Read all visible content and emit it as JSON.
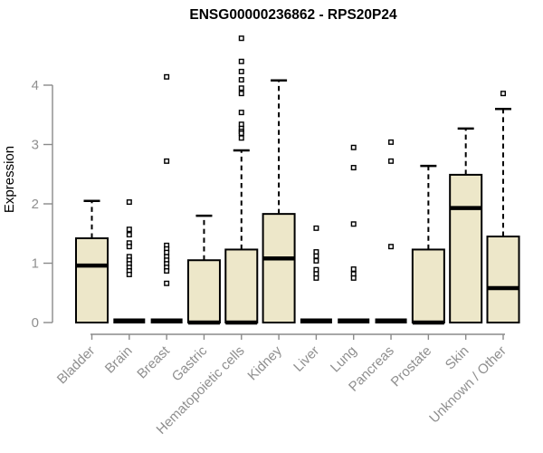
{
  "title": "ENSG00000236862 - RPS20P24",
  "chart_data": {
    "type": "boxplot",
    "title": "ENSG00000236862 - RPS20P24",
    "xlabel": "",
    "ylabel": "Expression",
    "ylim": [
      0,
      4.9
    ],
    "yticks": [
      0,
      1,
      2,
      3,
      4
    ],
    "grid": false,
    "legend": false,
    "categories": [
      "Bladder",
      "Brain",
      "Breast",
      "Gastric",
      "Hematopoietic cells",
      "Kidney",
      "Liver",
      "Lung",
      "Pancreas",
      "Prostate",
      "Skin",
      "Unknown / Other"
    ],
    "boxes": [
      {
        "name": "Bladder",
        "low": 0,
        "q1": 0,
        "median": 0.96,
        "q3": 1.42,
        "high": 2.05,
        "outliers": []
      },
      {
        "name": "Brain",
        "low": 0,
        "q1": 0,
        "median": 0,
        "q3": 0,
        "high": 0,
        "outliers": [
          2.03,
          1.57,
          1.48,
          1.34,
          1.28,
          1.11,
          1.05,
          0.99,
          0.93,
          0.87,
          0.81
        ]
      },
      {
        "name": "Breast",
        "low": 0,
        "q1": 0,
        "median": 0,
        "q3": 0,
        "high": 0,
        "outliers": [
          4.14,
          2.72,
          1.3,
          1.24,
          1.18,
          1.11,
          1.05,
          0.99,
          0.93,
          0.87,
          0.66
        ]
      },
      {
        "name": "Gastric",
        "low": 0,
        "q1": 0,
        "median": 0,
        "q3": 1.05,
        "high": 1.8,
        "outliers": []
      },
      {
        "name": "Hematopoietic cells",
        "low": 0,
        "q1": 0,
        "median": 0,
        "q3": 1.23,
        "high": 2.9,
        "outliers": [
          4.79,
          4.4,
          4.23,
          4.09,
          3.95,
          3.86,
          3.54,
          3.34,
          3.27,
          3.22,
          3.19,
          3.11
        ]
      },
      {
        "name": "Kidney",
        "low": 0,
        "q1": 0,
        "median": 1.08,
        "q3": 1.83,
        "high": 4.08,
        "outliers": []
      },
      {
        "name": "Liver",
        "low": 0,
        "q1": 0,
        "median": 0,
        "q3": 0,
        "high": 0,
        "outliers": [
          1.59,
          1.19,
          1.12,
          1.04,
          0.89,
          0.82,
          0.75
        ]
      },
      {
        "name": "Lung",
        "low": 0,
        "q1": 0,
        "median": 0,
        "q3": 0,
        "high": 0,
        "outliers": [
          2.95,
          2.61,
          1.66,
          0.9,
          0.82,
          0.75
        ]
      },
      {
        "name": "Pancreas",
        "low": 0,
        "q1": 0,
        "median": 0,
        "q3": 0,
        "high": 0,
        "outliers": [
          3.04,
          2.72,
          1.28
        ]
      },
      {
        "name": "Prostate",
        "low": 0,
        "q1": 0,
        "median": 0,
        "q3": 1.23,
        "high": 2.64,
        "outliers": []
      },
      {
        "name": "Skin",
        "low": 0,
        "q1": 0,
        "median": 1.93,
        "q3": 2.49,
        "high": 3.27,
        "outliers": []
      },
      {
        "name": "Unknown / Other",
        "low": 0,
        "q1": 0,
        "median": 0.58,
        "q3": 1.45,
        "high": 3.6,
        "outliers": [
          3.86
        ]
      }
    ],
    "colors": {
      "box_fill": "#EDE7C9",
      "box_border": "#000000",
      "median": "#000000",
      "axis": "#8A8A8A",
      "tick_label": "#8F8F8F",
      "title": "#000000",
      "outlier_fill": "#FFFFFF",
      "background": "#FFFFFF"
    }
  }
}
